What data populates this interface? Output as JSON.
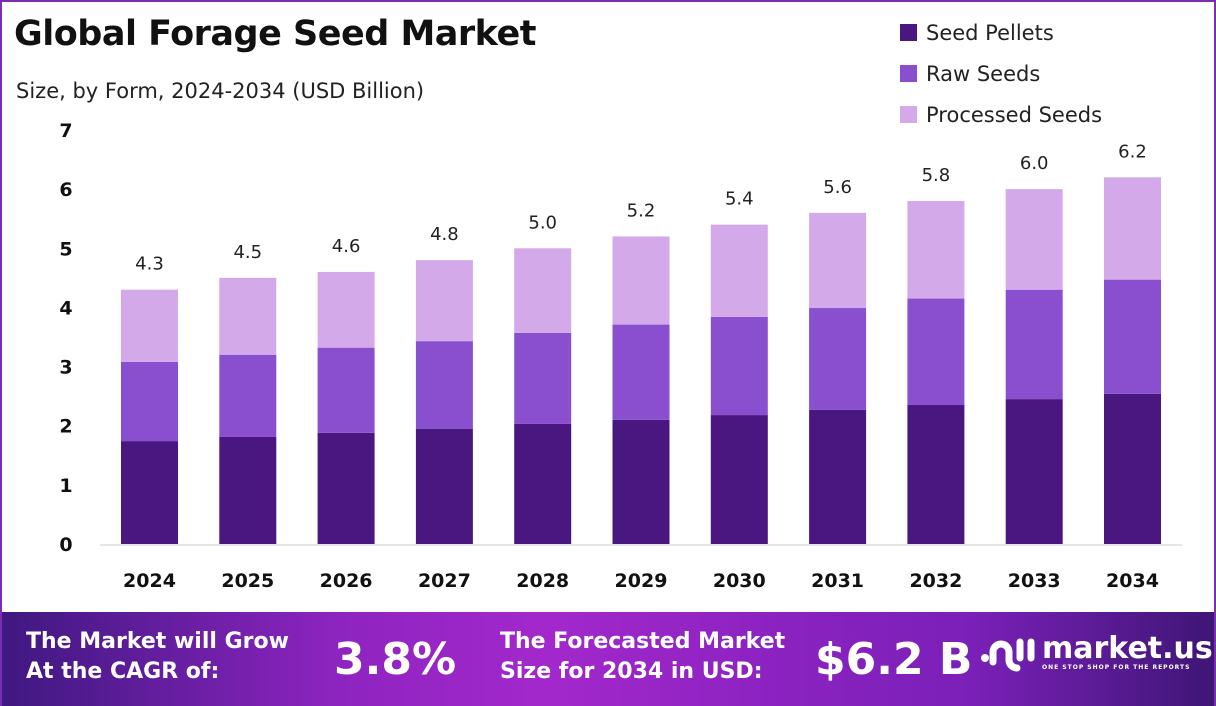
{
  "chart_data": {
    "type": "bar",
    "stacked": true,
    "title": "Global Forage Seed Market",
    "subtitle": "Size, by Form, 2024-2034 (USD Billion)",
    "categories": [
      "2024",
      "2025",
      "2026",
      "2027",
      "2028",
      "2029",
      "2030",
      "2031",
      "2032",
      "2033",
      "2034"
    ],
    "series": [
      {
        "name": "Seed Pellets",
        "color": "#4a1780",
        "values": [
          1.74,
          1.81,
          1.88,
          1.95,
          2.03,
          2.1,
          2.18,
          2.27,
          2.35,
          2.45,
          2.54
        ]
      },
      {
        "name": "Raw Seeds",
        "color": "#8a4fcf",
        "values": [
          1.34,
          1.39,
          1.44,
          1.48,
          1.54,
          1.61,
          1.66,
          1.72,
          1.8,
          1.85,
          1.93
        ]
      },
      {
        "name": "Processed Seeds",
        "color": "#d3a9ea",
        "values": [
          1.22,
          1.3,
          1.28,
          1.37,
          1.43,
          1.49,
          1.56,
          1.61,
          1.65,
          1.7,
          1.73
        ]
      }
    ],
    "totals": [
      "4.3",
      "4.5",
      "4.6",
      "4.8",
      "5.0",
      "5.2",
      "5.4",
      "5.6",
      "5.8",
      "6.0",
      "6.2"
    ],
    "ylim": [
      0,
      7
    ],
    "yticks": [
      "0",
      "1",
      "2",
      "3",
      "4",
      "5",
      "6",
      "7"
    ],
    "grid": false,
    "legend": "top-right"
  },
  "footer": {
    "cagr_label_1": "The Market will Grow",
    "cagr_label_2": "At the CAGR of:",
    "cagr_value": "3.8%",
    "forecast_label_1": "The Forecasted Market",
    "forecast_label_2": "Size for 2034 in USD:",
    "forecast_value": "$6.2 B",
    "logo_name": "market.us",
    "logo_tagline": "ONE STOP SHOP FOR THE REPORTS"
  }
}
